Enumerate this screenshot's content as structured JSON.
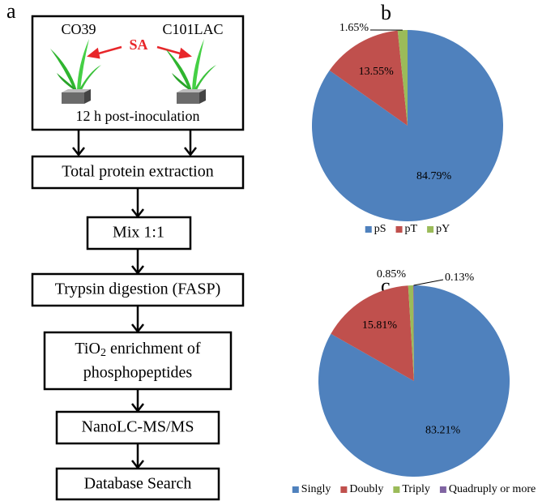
{
  "flowchart": {
    "panel": "a",
    "top": {
      "left": "CO39",
      "right": "C101LAC",
      "signal": "SA",
      "caption": "12 h post-inoculation"
    },
    "steps": [
      "Total protein extraction",
      "Mix 1:1",
      "Trypsin digestion (FASP)"
    ],
    "enrichment": {
      "pre": "TiO",
      "sub": "2",
      "post": " enrichment of",
      "line2": "phosphopeptides"
    },
    "final": [
      "NanoLC-MS/MS",
      "Database Search"
    ]
  },
  "chart_data": [
    {
      "type": "pie",
      "panel": "b",
      "categories": [
        "pS",
        "pT",
        "pY"
      ],
      "values": [
        84.79,
        13.55,
        1.65
      ],
      "value_labels": [
        "84.79%",
        "13.55%",
        "1.65%"
      ],
      "colors": [
        "#4f81bd",
        "#c0504d",
        "#9bbb59"
      ],
      "legend": "bottom"
    },
    {
      "type": "pie",
      "panel": "c",
      "categories": [
        "Singly",
        "Doubly",
        "Triply",
        "Quadruply or more"
      ],
      "values": [
        83.21,
        15.81,
        0.85,
        0.13
      ],
      "value_labels": [
        "83.21%",
        "15.81%",
        "0.85%",
        "0.13%"
      ],
      "colors": [
        "#4f81bd",
        "#c0504d",
        "#9bbb59",
        "#8064a2"
      ],
      "legend": "bottom"
    }
  ]
}
